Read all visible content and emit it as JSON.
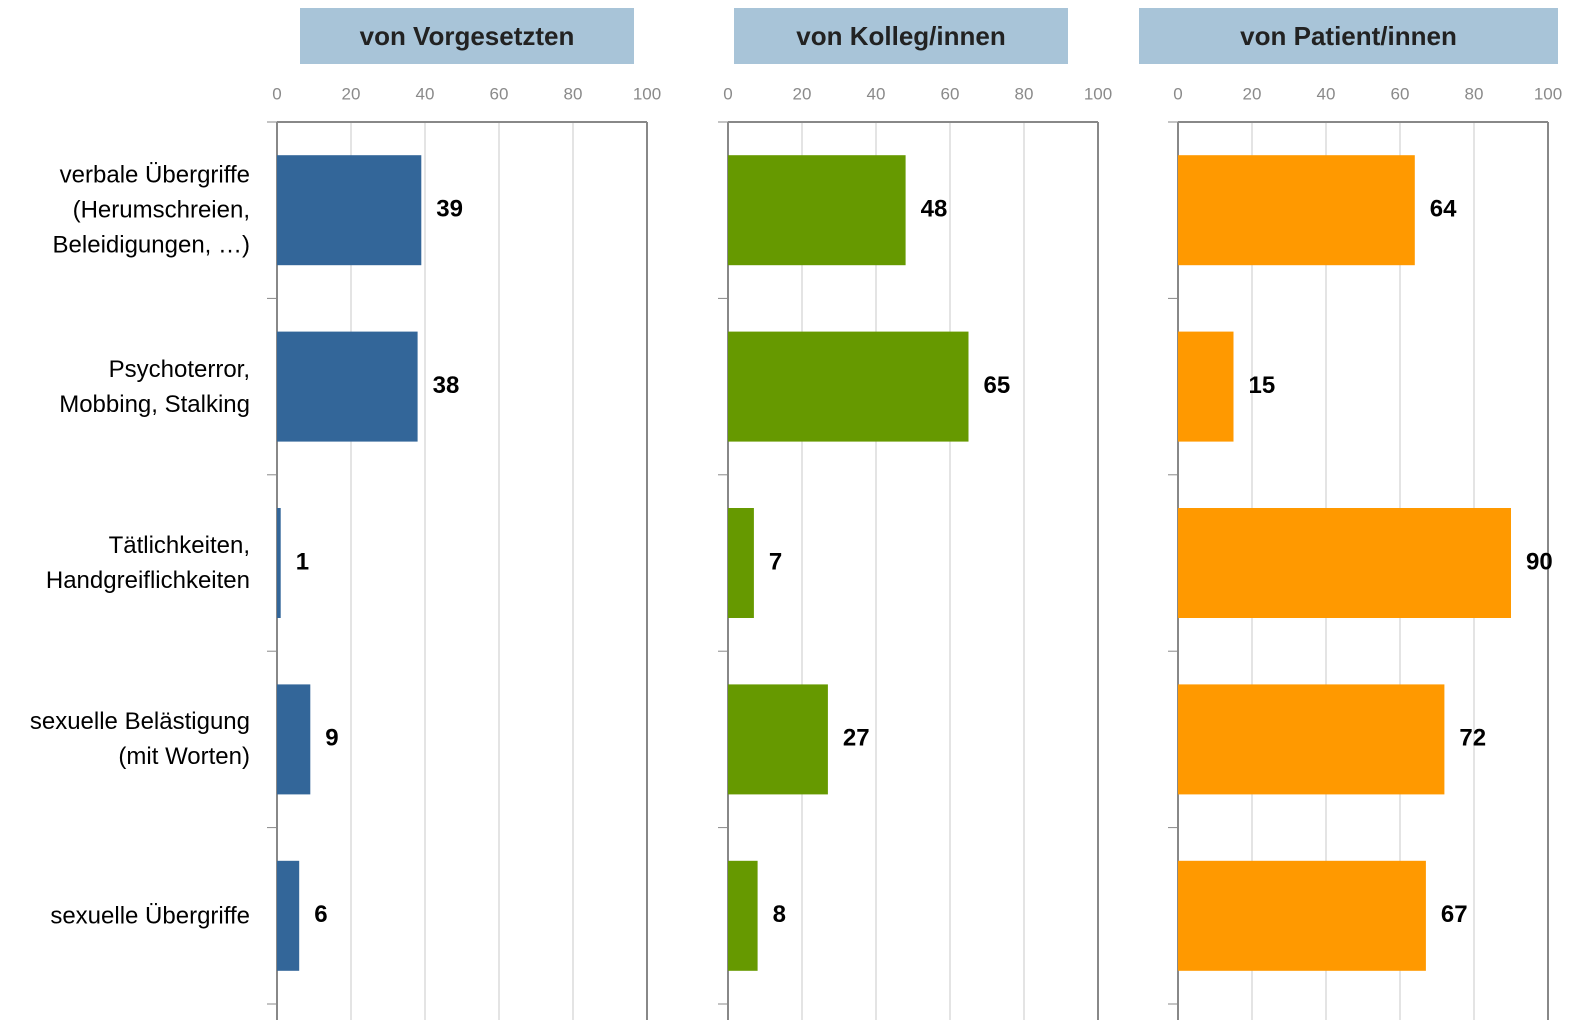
{
  "chart_data": [
    {
      "type": "bar",
      "title": "von Vorgesetzten",
      "categories": [
        "verbale Übergriffe\n(Herumschreien,\nBeleidigungen, …)",
        "Psychoterror,\nMobbing, Stalking",
        "Tätlichkeiten,\nHandgreiflichkeiten",
        "sexuelle Belästigung\n(mit Worten)",
        "sexuelle Übergriffe"
      ],
      "values": [
        39,
        38,
        1,
        9,
        6
      ],
      "color": "#336699",
      "xlim": [
        0,
        100
      ],
      "xticks": [
        0,
        20,
        40,
        60,
        80,
        100
      ],
      "grid": true
    },
    {
      "type": "bar",
      "title": "von Kolleg/innen",
      "values": [
        48,
        65,
        7,
        27,
        8
      ],
      "color": "#669900",
      "xlim": [
        0,
        100
      ],
      "xticks": [
        0,
        20,
        40,
        60,
        80,
        100
      ],
      "grid": true
    },
    {
      "type": "bar",
      "title": "von Patient/innen",
      "values": [
        64,
        15,
        90,
        72,
        67
      ],
      "color": "#ff9900",
      "xlim": [
        0,
        100
      ],
      "xticks": [
        0,
        20,
        40,
        60,
        80,
        100
      ],
      "grid": true
    }
  ]
}
